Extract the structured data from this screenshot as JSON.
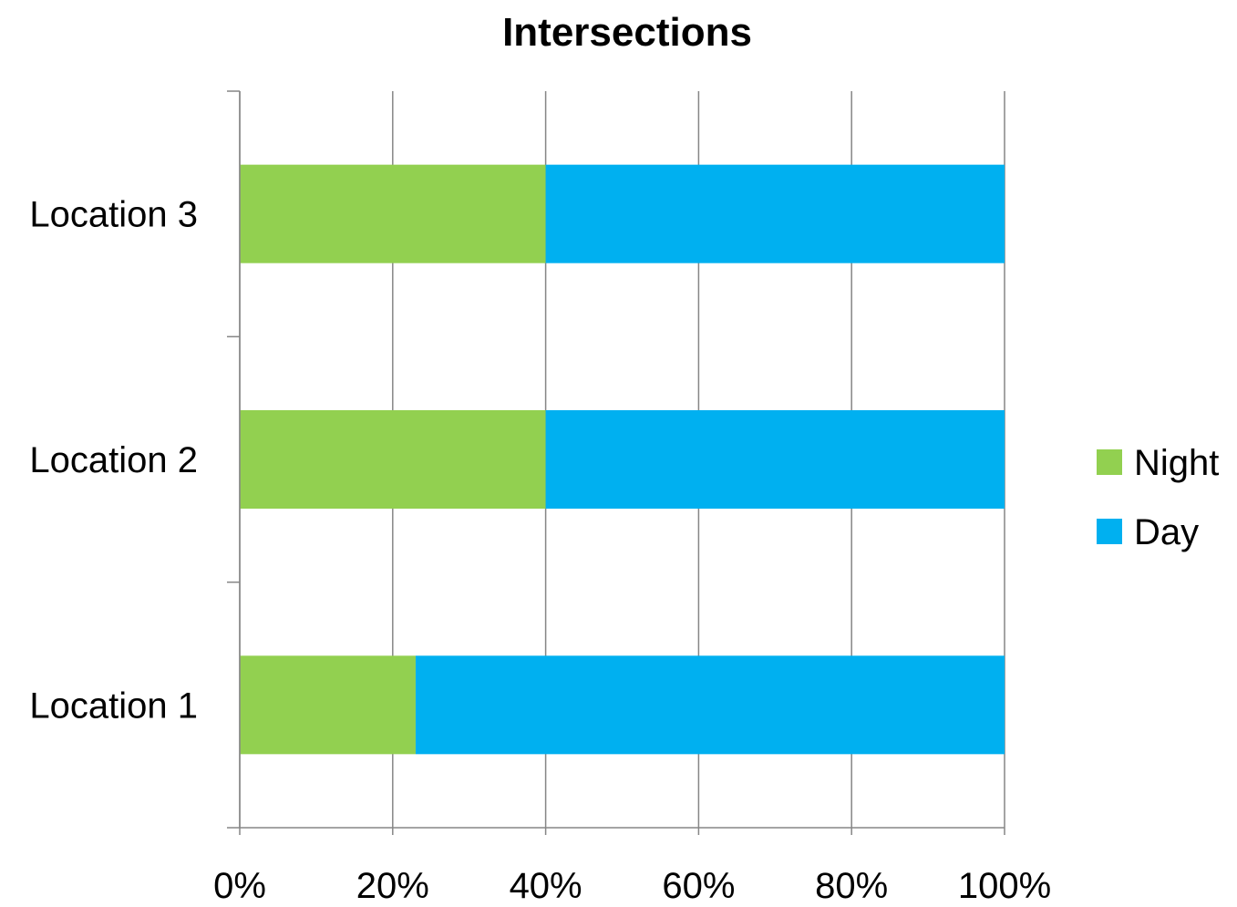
{
  "chart_data": {
    "type": "bar",
    "orientation": "horizontal",
    "stacked": "percent",
    "title": "Intersections",
    "categories": [
      "Location 1",
      "Location 2",
      "Location 3"
    ],
    "series": [
      {
        "name": "Night",
        "color": "#92D050",
        "values": [
          23,
          40,
          40
        ]
      },
      {
        "name": "Day",
        "color": "#00B0F0",
        "values": [
          77,
          60,
          60
        ]
      }
    ],
    "x_ticks": [
      "0%",
      "20%",
      "40%",
      "60%",
      "80%",
      "100%"
    ],
    "xlim": [
      0,
      100
    ],
    "grid": true,
    "legend": "right"
  }
}
